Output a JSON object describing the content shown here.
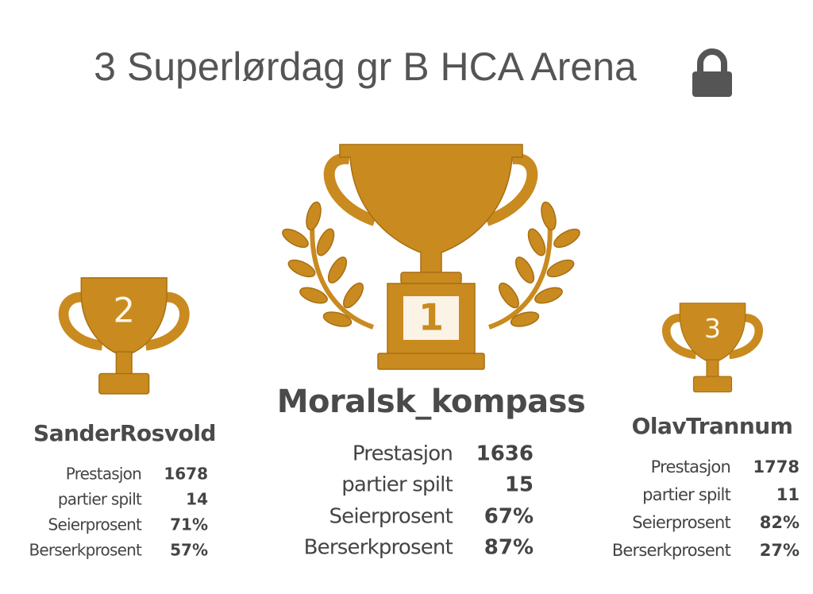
{
  "header": {
    "title": "3 Superlørdag gr B HCA Arena"
  },
  "podium": [
    {
      "rank": "2",
      "name": "SanderRosvold",
      "stats": [
        {
          "label": "Prestasjon",
          "value": "1678"
        },
        {
          "label": "partier spilt",
          "value": "14"
        },
        {
          "label": "Seierprosent",
          "value": "71%"
        },
        {
          "label": "Berserkprosent",
          "value": "57%"
        }
      ]
    },
    {
      "rank": "1",
      "name": "Moralsk_kompass",
      "stats": [
        {
          "label": "Prestasjon",
          "value": "1636"
        },
        {
          "label": "partier spilt",
          "value": "15"
        },
        {
          "label": "Seierprosent",
          "value": "67%"
        },
        {
          "label": "Berserkprosent",
          "value": "87%"
        }
      ]
    },
    {
      "rank": "3",
      "name": "OlavTrannum",
      "stats": [
        {
          "label": "Prestasjon",
          "value": "1778"
        },
        {
          "label": "partier spilt",
          "value": "11"
        },
        {
          "label": "Seierprosent",
          "value": "82%"
        },
        {
          "label": "Berserkprosent",
          "value": "27%"
        }
      ]
    }
  ]
}
